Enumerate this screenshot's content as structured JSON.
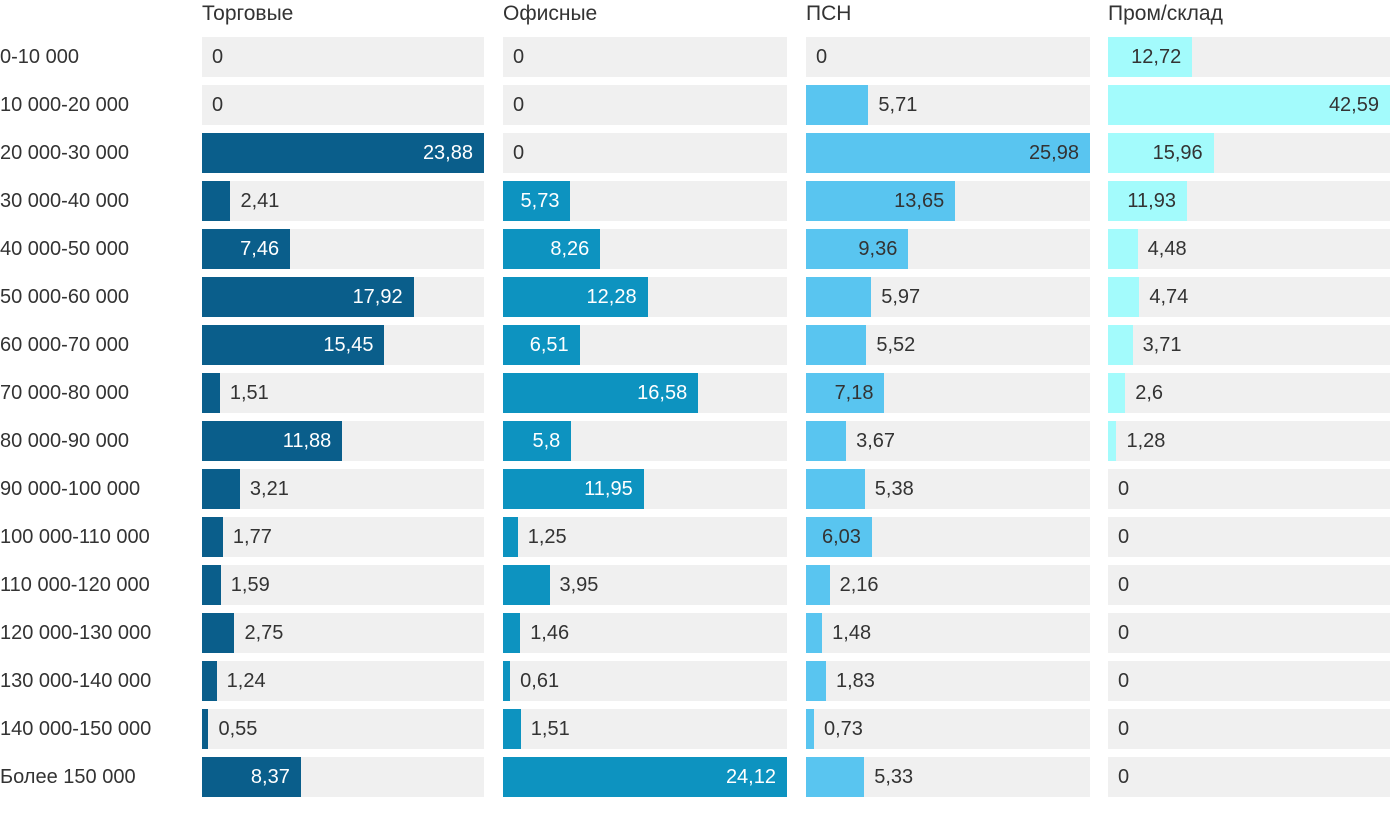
{
  "chart_data": {
    "type": "bar",
    "orientation": "horizontal",
    "title": "",
    "xlabel": "",
    "ylabel": "",
    "grid": false,
    "legend_position": "column-headers",
    "value_decimal_separator": ",",
    "track_color": "#f0f0f0",
    "text_color": "#333333",
    "categories": [
      "0-10 000",
      "10 000-20 000",
      "20 000-30 000",
      "30 000-40 000",
      "40 000-50 000",
      "50 000-60 000",
      "60 000-70 000",
      "70 000-80 000",
      "80 000-90 000",
      "90 000-100 000",
      "100 000-110 000",
      "110 000-120 000",
      "120 000-130 000",
      "130 000-140 000",
      "140 000-150 000",
      "Более 150 000"
    ],
    "series": [
      {
        "name": "Торговые",
        "color": "#0a5e8b",
        "inside_label_color": "#ffffff",
        "outside_label_color": "#333333",
        "axis_max": 23.88,
        "values": [
          0,
          0,
          23.88,
          2.41,
          7.46,
          17.92,
          15.45,
          1.51,
          11.88,
          3.21,
          1.77,
          1.59,
          2.75,
          1.24,
          0.55,
          8.37
        ],
        "labels": [
          "0",
          "0",
          "23,88",
          "2,41",
          "7,46",
          "17,92",
          "15,45",
          "1,51",
          "11,88",
          "3,21",
          "1,77",
          "1,59",
          "2,75",
          "1,24",
          "0,55",
          "8,37"
        ],
        "label_inside": [
          false,
          false,
          true,
          false,
          true,
          true,
          true,
          false,
          true,
          false,
          false,
          false,
          false,
          false,
          false,
          true
        ]
      },
      {
        "name": "Офисные",
        "color": "#0d93c0",
        "inside_label_color": "#ffffff",
        "outside_label_color": "#333333",
        "axis_max": 24.12,
        "values": [
          0,
          0,
          0,
          5.73,
          8.26,
          12.28,
          6.51,
          16.58,
          5.8,
          11.95,
          1.25,
          3.95,
          1.46,
          0.61,
          1.51,
          24.12
        ],
        "labels": [
          "0",
          "0",
          "0",
          "5,73",
          "8,26",
          "12,28",
          "6,51",
          "16,58",
          "5,8",
          "11,95",
          "1,25",
          "3,95",
          "1,46",
          "0,61",
          "1,51",
          "24,12"
        ],
        "label_inside": [
          false,
          false,
          false,
          true,
          true,
          true,
          true,
          true,
          true,
          true,
          false,
          false,
          false,
          false,
          false,
          true
        ]
      },
      {
        "name": "ПСН",
        "color": "#59c5f0",
        "inside_label_color": "#333333",
        "outside_label_color": "#333333",
        "axis_max": 25.98,
        "values": [
          0,
          5.71,
          25.98,
          13.65,
          9.36,
          5.97,
          5.52,
          7.18,
          3.67,
          5.38,
          6.03,
          2.16,
          1.48,
          1.83,
          0.73,
          5.33
        ],
        "labels": [
          "0",
          "5,71",
          "25,98",
          "13,65",
          "9,36",
          "5,97",
          "5,52",
          "7,18",
          "3,67",
          "5,38",
          "6,03",
          "2,16",
          "1,48",
          "1,83",
          "0,73",
          "5,33"
        ],
        "label_inside": [
          false,
          false,
          true,
          true,
          true,
          false,
          false,
          true,
          false,
          false,
          true,
          false,
          false,
          false,
          false,
          false
        ]
      },
      {
        "name": "Пром/склад",
        "color": "#a3fbfc",
        "inside_label_color": "#333333",
        "outside_label_color": "#333333",
        "axis_max": 42.59,
        "values": [
          12.72,
          42.59,
          15.96,
          11.93,
          4.48,
          4.74,
          3.71,
          2.6,
          1.28,
          0,
          0,
          0,
          0,
          0,
          0,
          0
        ],
        "labels": [
          "12,72",
          "42,59",
          "15,96",
          "11,93",
          "4,48",
          "4,74",
          "3,71",
          "2,6",
          "1,28",
          "0",
          "0",
          "0",
          "0",
          "0",
          "0",
          "0"
        ],
        "label_inside": [
          true,
          true,
          true,
          true,
          false,
          false,
          false,
          false,
          false,
          false,
          false,
          false,
          false,
          false,
          false,
          false
        ]
      }
    ]
  }
}
